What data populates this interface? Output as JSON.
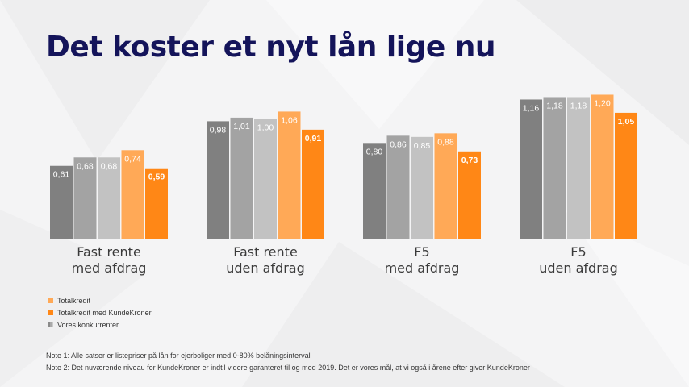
{
  "title": "Det koster et nyt lån lige nu",
  "colors": {
    "title": "#14145a",
    "competitor_1": "#808080",
    "competitor_2": "#a3a3a3",
    "competitor_3": "#c2c2c2",
    "totalkredit": "#ffa957",
    "kundekroner": "#ff8716"
  },
  "chart_data": {
    "type": "bar",
    "categories": [
      "Fast rente med afdrag",
      "Fast rente uden afdrag",
      "F5 med afdrag",
      "F5 uden afdrag"
    ],
    "category_lines": [
      [
        "Fast rente",
        "med afdrag"
      ],
      [
        "Fast rente",
        "uden afdrag"
      ],
      [
        "F5",
        "med afdrag"
      ],
      [
        "F5",
        "uden afdrag"
      ]
    ],
    "series": [
      {
        "color": "#808080",
        "values": [
          0.61,
          0.98,
          0.8,
          1.16
        ],
        "labels": [
          "0,61",
          "0,98",
          "0,80",
          "1,16"
        ]
      },
      {
        "color": "#a3a3a3",
        "values": [
          0.68,
          1.01,
          0.86,
          1.18
        ],
        "labels": [
          "0,68",
          "1,01",
          "0,86",
          "1,18"
        ]
      },
      {
        "color": "#c2c2c2",
        "values": [
          0.68,
          1.0,
          0.85,
          1.18
        ],
        "labels": [
          "0,68",
          "1,00",
          "0,85",
          "1,18"
        ]
      },
      {
        "name": "Totalkredit",
        "color": "#ffa957",
        "values": [
          0.74,
          1.06,
          0.88,
          1.2
        ],
        "labels": [
          "0,74",
          "1,06",
          "0,88",
          "1,20"
        ]
      },
      {
        "name": "Totalkredit med KundeKroner",
        "color": "#ff8716",
        "values": [
          0.59,
          0.91,
          0.73,
          1.05
        ],
        "labels": [
          "0,59",
          "0,91",
          "0,73",
          "1,05"
        ],
        "bold_labels": true
      }
    ],
    "ylim": [
      0,
      1.25
    ],
    "grid": false,
    "legend_position": "bottom-left"
  },
  "legend": [
    {
      "label": "Totalkredit",
      "color": "#ffa957"
    },
    {
      "label": "Totalkredit med KundeKroner",
      "color": "#ff8716"
    },
    {
      "label": "Vores konkurrenter",
      "color": "split"
    }
  ],
  "notes": [
    "Note 1: Alle satser er listepriser på lån for ejerboliger med 0-80% belåningsinterval",
    "Note 2: Det nuværende niveau for KundeKroner er indtil videre garanteret til og med 2019. Det er vores mål, at vi også i årene efter giver KundeKroner"
  ]
}
